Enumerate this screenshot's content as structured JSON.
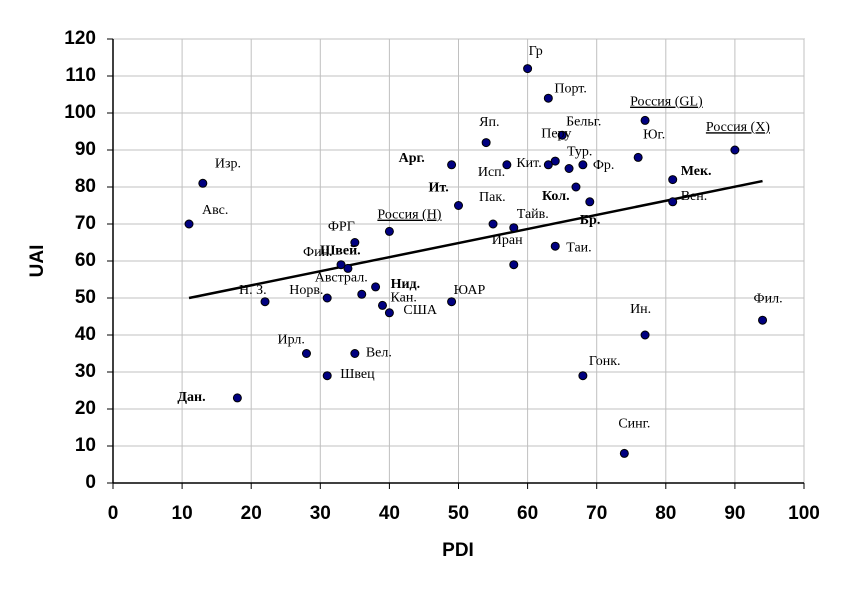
{
  "chart_data": {
    "type": "scatter",
    "x_label": "PDI",
    "y_label": "UAI",
    "xlim": [
      0,
      100
    ],
    "ylim": [
      0,
      120
    ],
    "xticks": [
      0,
      10,
      20,
      30,
      40,
      50,
      60,
      70,
      80,
      90,
      100
    ],
    "yticks": [
      0,
      10,
      20,
      30,
      40,
      50,
      60,
      70,
      80,
      90,
      100,
      110,
      120
    ],
    "grid": true,
    "color": "#000080",
    "labels": [
      "Гр",
      "Порт.",
      "Россия (GL)",
      "Бельг.",
      "Яп.",
      "Перу",
      "Кит.",
      "Исп.",
      "Тур.",
      "Фр.",
      "Арг.",
      "Ит.",
      "Пак.",
      "Тайв.",
      "Иран",
      "Кол.",
      "Бр.",
      "Таи.",
      "Россия (H)",
      "ФРГ",
      "Фин.",
      "Швей.",
      "Австрал.",
      "Нид.",
      "Кан.",
      "США",
      "ЮАР",
      "Норв.",
      "Н. З.",
      "Ирл.",
      "Вел.",
      "Швец",
      "Дан.",
      "Изр.",
      "Авс.",
      "Юг.",
      "Мек.",
      "Вен.",
      "Россия (X)",
      "Ин.",
      "Гонк.",
      "Синг.",
      "Фил."
    ],
    "x": [
      60,
      63,
      77,
      65,
      54,
      64,
      63,
      57,
      66,
      68,
      49,
      50,
      55,
      58,
      58,
      67,
      69,
      64,
      40,
      35,
      33,
      34,
      36,
      38,
      39,
      40,
      49,
      31,
      22,
      28,
      35,
      31,
      18,
      13,
      11,
      76,
      81,
      81,
      90,
      77,
      68,
      74,
      94
    ],
    "y": [
      112,
      104,
      98,
      94,
      92,
      87,
      86,
      86,
      85,
      86,
      86,
      75,
      70,
      69,
      59,
      80,
      76,
      64,
      68,
      65,
      59,
      58,
      51,
      53,
      48,
      46,
      49,
      50,
      49,
      35,
      35,
      29,
      23,
      81,
      70,
      88,
      82,
      76,
      90,
      40,
      29,
      8,
      44
    ],
    "label_styles": [
      "normal",
      "normal",
      "underline",
      "normal",
      "normal",
      "normal",
      "normal",
      "normal",
      "normal",
      "normal",
      "bold",
      "bold",
      "normal",
      "normal",
      "normal",
      "bold",
      "bold",
      "normal",
      "underline",
      "normal",
      "normal",
      "bold",
      "normal",
      "bold",
      "normal",
      "normal",
      "normal",
      "normal",
      "normal",
      "normal",
      "normal",
      "normal",
      "bold",
      "normal",
      "normal",
      "normal",
      "bold",
      "normal",
      "underline",
      "normal",
      "normal",
      "normal",
      "normal"
    ],
    "trendline": {
      "x": [
        11,
        94
      ],
      "y": [
        50,
        81.6
      ],
      "color": "#000000"
    }
  }
}
